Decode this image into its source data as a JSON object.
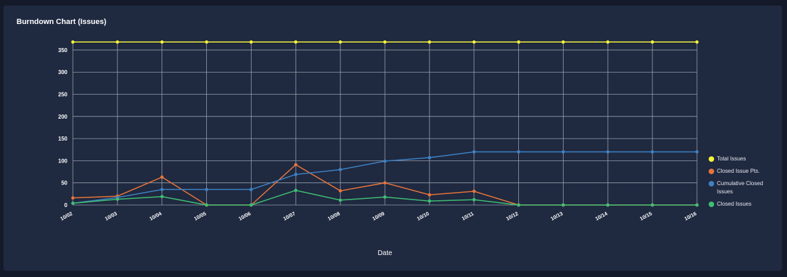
{
  "chart_data": {
    "type": "line",
    "title": "Burndown Chart (Issues)",
    "xlabel": "Date",
    "ylabel": "",
    "ylim": [
      0,
      370
    ],
    "yticks": [
      0,
      50,
      100,
      150,
      200,
      250,
      300,
      350
    ],
    "x": [
      "10/02",
      "10/03",
      "10/04",
      "10/05",
      "10/06",
      "10/07",
      "10/08",
      "10/09",
      "10/10",
      "10/11",
      "10/12",
      "10/13",
      "10/14",
      "10/15",
      "10/16"
    ],
    "grid": true,
    "legend_position": "right",
    "series": [
      {
        "name": "Total Issues",
        "color": "#f5f53a",
        "values": [
          368,
          368,
          368,
          368,
          368,
          368,
          368,
          368,
          368,
          368,
          368,
          368,
          368,
          368,
          368
        ]
      },
      {
        "name": "Closed Issue Pts.",
        "color": "#e8743b",
        "values": [
          16,
          20,
          63,
          0,
          0,
          91,
          32,
          50,
          23,
          31,
          0,
          0,
          0,
          0,
          0
        ]
      },
      {
        "name": "Cumulative Closed Issues",
        "color": "#3e82c4",
        "values": [
          4,
          17,
          35,
          35,
          35,
          69,
          80,
          99,
          107,
          120,
          120,
          120,
          120,
          120,
          120
        ]
      },
      {
        "name": "Closed Issues",
        "color": "#3fbf73",
        "values": [
          4,
          13,
          19,
          0,
          0,
          33,
          11,
          18,
          9,
          12,
          0,
          0,
          0,
          0,
          0
        ]
      }
    ]
  }
}
